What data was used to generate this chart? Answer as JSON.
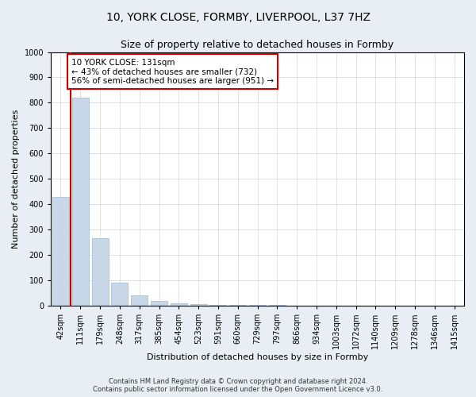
{
  "title_line1": "10, YORK CLOSE, FORMBY, LIVERPOOL, L37 7HZ",
  "title_line2": "Size of property relative to detached houses in Formby",
  "xlabel": "Distribution of detached houses by size in Formby",
  "ylabel": "Number of detached properties",
  "footnote1": "Contains HM Land Registry data © Crown copyright and database right 2024.",
  "footnote2": "Contains public sector information licensed under the Open Government Licence v3.0.",
  "annotation_line1": "10 YORK CLOSE: 131sqm",
  "annotation_line2": "← 43% of detached houses are smaller (732)",
  "annotation_line3": "56% of semi-detached houses are larger (951) →",
  "categories": [
    "42sqm",
    "111sqm",
    "179sqm",
    "248sqm",
    "317sqm",
    "385sqm",
    "454sqm",
    "523sqm",
    "591sqm",
    "660sqm",
    "729sqm",
    "797sqm",
    "866sqm",
    "934sqm",
    "1003sqm",
    "1072sqm",
    "1140sqm",
    "1209sqm",
    "1278sqm",
    "1346sqm",
    "1415sqm"
  ],
  "values": [
    430,
    820,
    265,
    90,
    40,
    18,
    10,
    6,
    4,
    3,
    2,
    2,
    1,
    1,
    1,
    1,
    1,
    1,
    1,
    1,
    1
  ],
  "bar_color": "#c8d8e8",
  "bar_edge_color": "#a0b8cc",
  "vline_color": "#cc0000",
  "annotation_box_color": "#cc0000",
  "ylim": [
    0,
    1000
  ],
  "yticks": [
    0,
    100,
    200,
    300,
    400,
    500,
    600,
    700,
    800,
    900,
    1000
  ],
  "background_color": "#e8eef4",
  "plot_background": "#ffffff",
  "grid_color": "#cccccc",
  "title_fontsize": 10,
  "subtitle_fontsize": 9,
  "axis_label_fontsize": 8,
  "tick_fontsize": 7,
  "annotation_fontsize": 7.5,
  "footnote_fontsize": 6
}
